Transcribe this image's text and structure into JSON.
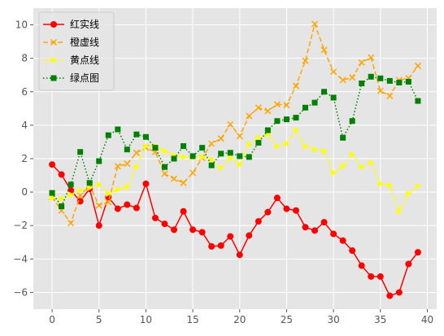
{
  "chart_data": {
    "type": "line",
    "title": "",
    "xlabel": "",
    "ylabel": "",
    "xlim": [
      -2,
      41
    ],
    "ylim": [
      -7,
      11
    ],
    "xticks": [
      0,
      5,
      10,
      15,
      20,
      25,
      30,
      35,
      40
    ],
    "yticks": [
      -6,
      -4,
      -2,
      0,
      2,
      4,
      6,
      8,
      10
    ],
    "grid": true,
    "legend_position": "top-left",
    "background": "#e5e5e5",
    "x": [
      0,
      1,
      2,
      3,
      4,
      5,
      6,
      7,
      8,
      9,
      10,
      11,
      12,
      13,
      14,
      15,
      16,
      17,
      18,
      19,
      20,
      21,
      22,
      23,
      24,
      25,
      26,
      27,
      28,
      29,
      30,
      31,
      32,
      33,
      34,
      35,
      36,
      37,
      38,
      39
    ],
    "series": [
      {
        "name": "红实线",
        "color": "#ff0000",
        "line_style": "solid",
        "marker": "circle",
        "values": [
          1.65,
          1.05,
          0.1,
          -0.55,
          0.2,
          -2.0,
          -0.3,
          -1.0,
          -0.75,
          -0.95,
          0.5,
          -1.55,
          -1.9,
          -2.25,
          -1.15,
          -2.25,
          -2.4,
          -3.25,
          -3.2,
          -2.65,
          -3.75,
          -2.6,
          -1.75,
          -1.2,
          -0.35,
          -1.0,
          -1.1,
          -2.1,
          -2.3,
          -1.8,
          -2.5,
          -2.9,
          -3.5,
          -4.4,
          -5.05,
          -5.05,
          -6.2,
          -6.0,
          -4.3,
          -3.6
        ]
      },
      {
        "name": "橙虚线",
        "color": "#ffa500",
        "line_style": "dashed",
        "marker": "x",
        "values": [
          -0.3,
          -1.1,
          -1.85,
          -0.2,
          0.4,
          -0.8,
          -0.6,
          1.55,
          1.7,
          2.35,
          2.65,
          2.4,
          1.1,
          0.8,
          0.55,
          1.15,
          2.05,
          2.9,
          3.2,
          4.05,
          3.35,
          4.55,
          5.05,
          4.85,
          5.25,
          5.2,
          6.35,
          7.85,
          10.05,
          8.5,
          7.2,
          6.7,
          6.85,
          7.75,
          8.05,
          6.05,
          5.75,
          6.7,
          6.8,
          7.55
        ]
      },
      {
        "name": "黄点线",
        "color": "#ffff00",
        "line_style": "dashdot",
        "marker": "triangle-right",
        "values": [
          -0.35,
          -0.4,
          -0.15,
          0.1,
          0.25,
          0.45,
          -0.1,
          0.15,
          0.3,
          1.5,
          2.75,
          2.75,
          2.45,
          2.2,
          2.1,
          2.05,
          2.1,
          1.95,
          1.45,
          2.05,
          1.65,
          2.85,
          3.25,
          3.45,
          2.75,
          2.9,
          3.7,
          2.75,
          2.55,
          2.45,
          1.15,
          1.55,
          2.25,
          1.5,
          1.75,
          0.5,
          0.4,
          -1.15,
          -0.1,
          0.35
        ]
      },
      {
        "name": "绿点图",
        "color": "#008000",
        "line_style": "dotted",
        "marker": "square",
        "values": [
          -0.05,
          -0.85,
          0.45,
          2.4,
          0.55,
          1.85,
          3.4,
          3.75,
          2.55,
          3.45,
          3.3,
          2.65,
          1.5,
          2.0,
          2.75,
          2.15,
          2.65,
          1.6,
          2.3,
          2.35,
          2.15,
          2.1,
          2.95,
          3.7,
          4.25,
          4.35,
          4.45,
          5.05,
          5.35,
          6.0,
          5.65,
          3.25,
          4.25,
          6.5,
          6.9,
          6.8,
          6.65,
          6.55,
          6.6,
          5.45
        ]
      }
    ]
  }
}
